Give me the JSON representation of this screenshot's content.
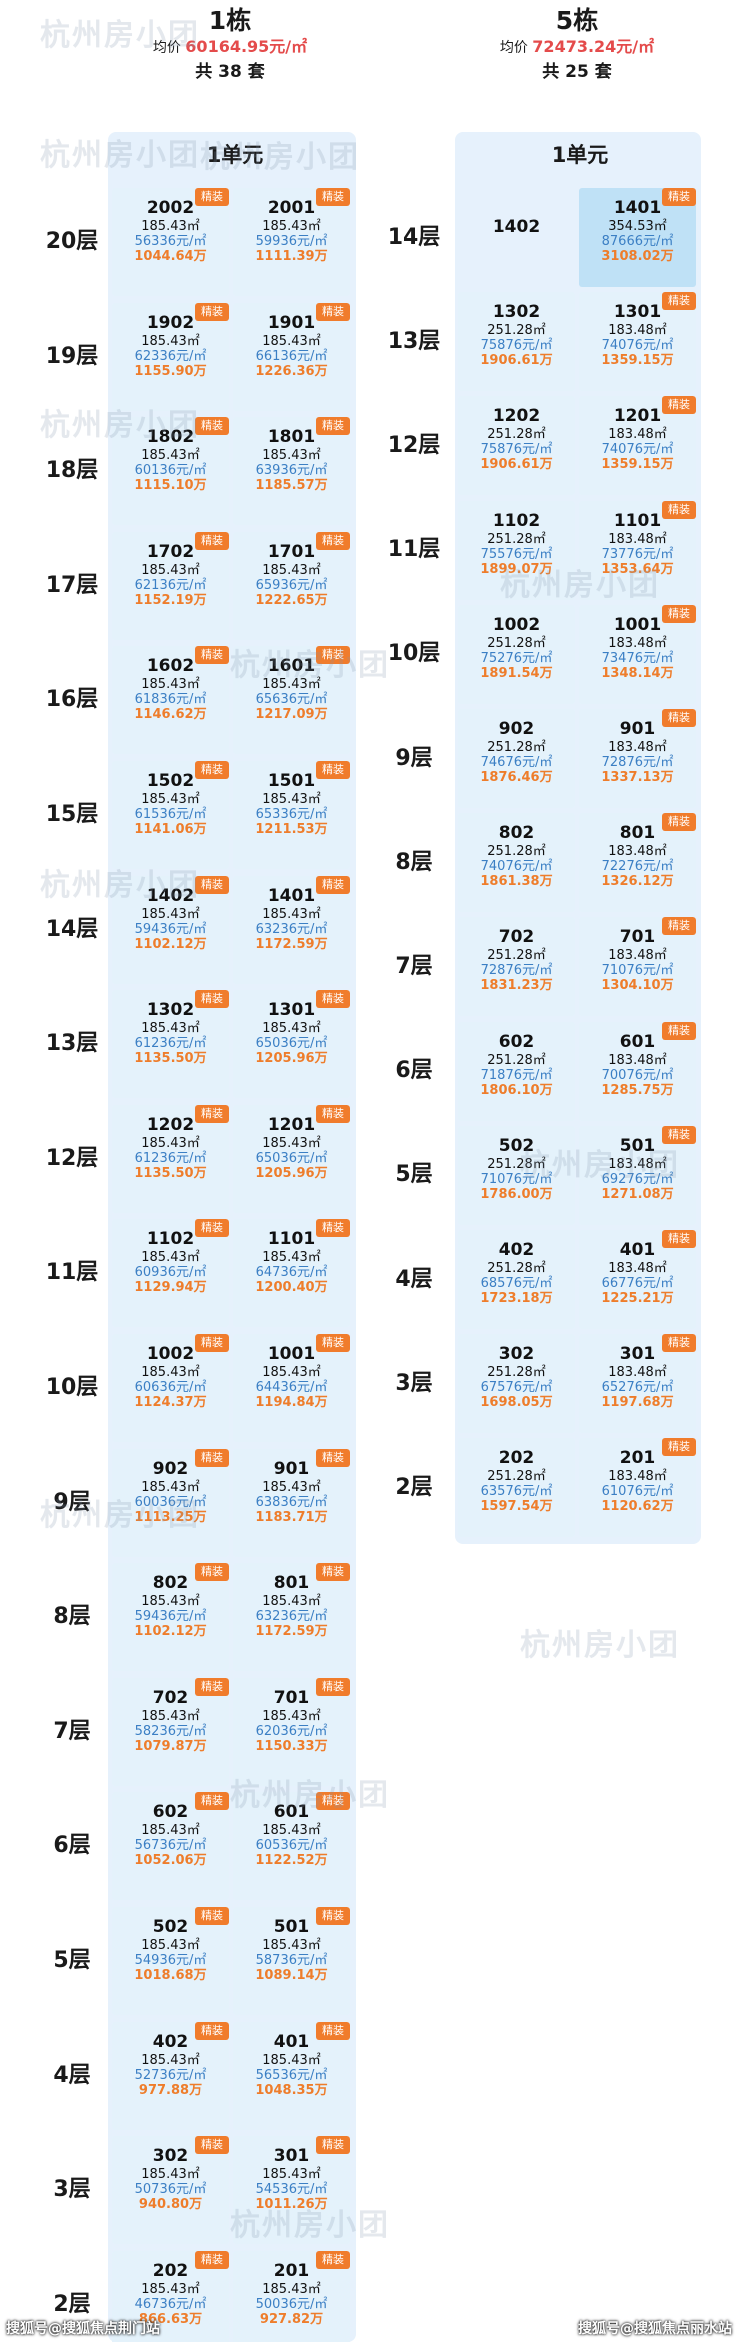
{
  "building1": {
    "name": "1栋",
    "price_label": "均价",
    "avg_price": "60164.95元/㎡",
    "total": "共 38 套",
    "unit_title": "1单元",
    "tag": "精装",
    "floors": [
      {
        "label": "20层",
        "units": [
          {
            "num": "2002",
            "area": "185.43㎡",
            "unit_price": "56336元/㎡",
            "total": "1044.64万",
            "tag": true
          },
          {
            "num": "2001",
            "area": "185.43㎡",
            "unit_price": "59936元/㎡",
            "total": "1111.39万",
            "tag": true
          }
        ]
      },
      {
        "label": "19层",
        "units": [
          {
            "num": "1902",
            "area": "185.43㎡",
            "unit_price": "62336元/㎡",
            "total": "1155.90万",
            "tag": true
          },
          {
            "num": "1901",
            "area": "185.43㎡",
            "unit_price": "66136元/㎡",
            "total": "1226.36万",
            "tag": true
          }
        ]
      },
      {
        "label": "18层",
        "units": [
          {
            "num": "1802",
            "area": "185.43㎡",
            "unit_price": "60136元/㎡",
            "total": "1115.10万",
            "tag": true
          },
          {
            "num": "1801",
            "area": "185.43㎡",
            "unit_price": "63936元/㎡",
            "total": "1185.57万",
            "tag": true
          }
        ]
      },
      {
        "label": "17层",
        "units": [
          {
            "num": "1702",
            "area": "185.43㎡",
            "unit_price": "62136元/㎡",
            "total": "1152.19万",
            "tag": true
          },
          {
            "num": "1701",
            "area": "185.43㎡",
            "unit_price": "65936元/㎡",
            "total": "1222.65万",
            "tag": true
          }
        ]
      },
      {
        "label": "16层",
        "units": [
          {
            "num": "1602",
            "area": "185.43㎡",
            "unit_price": "61836元/㎡",
            "total": "1146.62万",
            "tag": true
          },
          {
            "num": "1601",
            "area": "185.43㎡",
            "unit_price": "65636元/㎡",
            "total": "1217.09万",
            "tag": true
          }
        ]
      },
      {
        "label": "15层",
        "units": [
          {
            "num": "1502",
            "area": "185.43㎡",
            "unit_price": "61536元/㎡",
            "total": "1141.06万",
            "tag": true
          },
          {
            "num": "1501",
            "area": "185.43㎡",
            "unit_price": "65336元/㎡",
            "total": "1211.53万",
            "tag": true
          }
        ]
      },
      {
        "label": "14层",
        "units": [
          {
            "num": "1402",
            "area": "185.43㎡",
            "unit_price": "59436元/㎡",
            "total": "1102.12万",
            "tag": true
          },
          {
            "num": "1401",
            "area": "185.43㎡",
            "unit_price": "63236元/㎡",
            "total": "1172.59万",
            "tag": true
          }
        ]
      },
      {
        "label": "13层",
        "units": [
          {
            "num": "1302",
            "area": "185.43㎡",
            "unit_price": "61236元/㎡",
            "total": "1135.50万",
            "tag": true
          },
          {
            "num": "1301",
            "area": "185.43㎡",
            "unit_price": "65036元/㎡",
            "total": "1205.96万",
            "tag": true
          }
        ]
      },
      {
        "label": "12层",
        "units": [
          {
            "num": "1202",
            "area": "185.43㎡",
            "unit_price": "61236元/㎡",
            "total": "1135.50万",
            "tag": true
          },
          {
            "num": "1201",
            "area": "185.43㎡",
            "unit_price": "65036元/㎡",
            "total": "1205.96万",
            "tag": true
          }
        ]
      },
      {
        "label": "11层",
        "units": [
          {
            "num": "1102",
            "area": "185.43㎡",
            "unit_price": "60936元/㎡",
            "total": "1129.94万",
            "tag": true
          },
          {
            "num": "1101",
            "area": "185.43㎡",
            "unit_price": "64736元/㎡",
            "total": "1200.40万",
            "tag": true
          }
        ]
      },
      {
        "label": "10层",
        "units": [
          {
            "num": "1002",
            "area": "185.43㎡",
            "unit_price": "60636元/㎡",
            "total": "1124.37万",
            "tag": true
          },
          {
            "num": "1001",
            "area": "185.43㎡",
            "unit_price": "64436元/㎡",
            "total": "1194.84万",
            "tag": true
          }
        ]
      },
      {
        "label": "9层",
        "units": [
          {
            "num": "902",
            "area": "185.43㎡",
            "unit_price": "60036元/㎡",
            "total": "1113.25万",
            "tag": true
          },
          {
            "num": "901",
            "area": "185.43㎡",
            "unit_price": "63836元/㎡",
            "total": "1183.71万",
            "tag": true
          }
        ]
      },
      {
        "label": "8层",
        "units": [
          {
            "num": "802",
            "area": "185.43㎡",
            "unit_price": "59436元/㎡",
            "total": "1102.12万",
            "tag": true
          },
          {
            "num": "801",
            "area": "185.43㎡",
            "unit_price": "63236元/㎡",
            "total": "1172.59万",
            "tag": true
          }
        ]
      },
      {
        "label": "7层",
        "units": [
          {
            "num": "702",
            "area": "185.43㎡",
            "unit_price": "58236元/㎡",
            "total": "1079.87万",
            "tag": true
          },
          {
            "num": "701",
            "area": "185.43㎡",
            "unit_price": "62036元/㎡",
            "total": "1150.33万",
            "tag": true
          }
        ]
      },
      {
        "label": "6层",
        "units": [
          {
            "num": "602",
            "area": "185.43㎡",
            "unit_price": "56736元/㎡",
            "total": "1052.06万",
            "tag": true
          },
          {
            "num": "601",
            "area": "185.43㎡",
            "unit_price": "60536元/㎡",
            "total": "1122.52万",
            "tag": true
          }
        ]
      },
      {
        "label": "5层",
        "units": [
          {
            "num": "502",
            "area": "185.43㎡",
            "unit_price": "54936元/㎡",
            "total": "1018.68万",
            "tag": true
          },
          {
            "num": "501",
            "area": "185.43㎡",
            "unit_price": "58736元/㎡",
            "total": "1089.14万",
            "tag": true
          }
        ]
      },
      {
        "label": "4层",
        "units": [
          {
            "num": "402",
            "area": "185.43㎡",
            "unit_price": "52736元/㎡",
            "total": "977.88万",
            "tag": true
          },
          {
            "num": "401",
            "area": "185.43㎡",
            "unit_price": "56536元/㎡",
            "total": "1048.35万",
            "tag": true
          }
        ]
      },
      {
        "label": "3层",
        "units": [
          {
            "num": "302",
            "area": "185.43㎡",
            "unit_price": "50736元/㎡",
            "total": "940.80万",
            "tag": true
          },
          {
            "num": "301",
            "area": "185.43㎡",
            "unit_price": "54536元/㎡",
            "total": "1011.26万",
            "tag": true
          }
        ]
      },
      {
        "label": "2层",
        "units": [
          {
            "num": "202",
            "area": "185.43㎡",
            "unit_price": "46736元/㎡",
            "total": "866.63万",
            "tag": true
          },
          {
            "num": "201",
            "area": "185.43㎡",
            "unit_price": "50036元/㎡",
            "total": "927.82万",
            "tag": true
          }
        ]
      }
    ]
  },
  "building5": {
    "name": "5栋",
    "price_label": "均价",
    "avg_price": "72473.24元/㎡",
    "total": "共 25 套",
    "unit_title": "1单元",
    "tag": "精装",
    "floors": [
      {
        "label": "14层",
        "units": [
          {
            "num": "1402",
            "area": "",
            "unit_price": "",
            "total": "",
            "tag": false,
            "empty": true
          },
          {
            "num": "1401",
            "area": "354.53㎡",
            "unit_price": "87666元/㎡",
            "total": "3108.02万",
            "tag": true
          }
        ]
      },
      {
        "label": "13层",
        "units": [
          {
            "num": "1302",
            "area": "251.28㎡",
            "unit_price": "75876元/㎡",
            "total": "1906.61万",
            "tag": false
          },
          {
            "num": "1301",
            "area": "183.48㎡",
            "unit_price": "74076元/㎡",
            "total": "1359.15万",
            "tag": true
          }
        ]
      },
      {
        "label": "12层",
        "units": [
          {
            "num": "1202",
            "area": "251.28㎡",
            "unit_price": "75876元/㎡",
            "total": "1906.61万",
            "tag": false
          },
          {
            "num": "1201",
            "area": "183.48㎡",
            "unit_price": "74076元/㎡",
            "total": "1359.15万",
            "tag": true
          }
        ]
      },
      {
        "label": "11层",
        "units": [
          {
            "num": "1102",
            "area": "251.28㎡",
            "unit_price": "75576元/㎡",
            "total": "1899.07万",
            "tag": false
          },
          {
            "num": "1101",
            "area": "183.48㎡",
            "unit_price": "73776元/㎡",
            "total": "1353.64万",
            "tag": true
          }
        ]
      },
      {
        "label": "10层",
        "units": [
          {
            "num": "1002",
            "area": "251.28㎡",
            "unit_price": "75276元/㎡",
            "total": "1891.54万",
            "tag": false
          },
          {
            "num": "1001",
            "area": "183.48㎡",
            "unit_price": "73476元/㎡",
            "total": "1348.14万",
            "tag": true
          }
        ]
      },
      {
        "label": "9层",
        "units": [
          {
            "num": "902",
            "area": "251.28㎡",
            "unit_price": "74676元/㎡",
            "total": "1876.46万",
            "tag": false
          },
          {
            "num": "901",
            "area": "183.48㎡",
            "unit_price": "72876元/㎡",
            "total": "1337.13万",
            "tag": true
          }
        ]
      },
      {
        "label": "8层",
        "units": [
          {
            "num": "802",
            "area": "251.28㎡",
            "unit_price": "74076元/㎡",
            "total": "1861.38万",
            "tag": false
          },
          {
            "num": "801",
            "area": "183.48㎡",
            "unit_price": "72276元/㎡",
            "total": "1326.12万",
            "tag": true
          }
        ]
      },
      {
        "label": "7层",
        "units": [
          {
            "num": "702",
            "area": "251.28㎡",
            "unit_price": "72876元/㎡",
            "total": "1831.23万",
            "tag": false
          },
          {
            "num": "701",
            "area": "183.48㎡",
            "unit_price": "71076元/㎡",
            "total": "1304.10万",
            "tag": true
          }
        ]
      },
      {
        "label": "6层",
        "units": [
          {
            "num": "602",
            "area": "251.28㎡",
            "unit_price": "71876元/㎡",
            "total": "1806.10万",
            "tag": false
          },
          {
            "num": "601",
            "area": "183.48㎡",
            "unit_price": "70076元/㎡",
            "total": "1285.75万",
            "tag": true
          }
        ]
      },
      {
        "label": "5层",
        "units": [
          {
            "num": "502",
            "area": "251.28㎡",
            "unit_price": "71076元/㎡",
            "total": "1786.00万",
            "tag": false
          },
          {
            "num": "501",
            "area": "183.48㎡",
            "unit_price": "69276元/㎡",
            "total": "1271.08万",
            "tag": true
          }
        ]
      },
      {
        "label": "4层",
        "units": [
          {
            "num": "402",
            "area": "251.28㎡",
            "unit_price": "68576元/㎡",
            "total": "1723.18万",
            "tag": false
          },
          {
            "num": "401",
            "area": "183.48㎡",
            "unit_price": "66776元/㎡",
            "total": "1225.21万",
            "tag": true
          }
        ]
      },
      {
        "label": "3层",
        "units": [
          {
            "num": "302",
            "area": "251.28㎡",
            "unit_price": "67576元/㎡",
            "total": "1698.05万",
            "tag": false
          },
          {
            "num": "301",
            "area": "183.48㎡",
            "unit_price": "65276元/㎡",
            "total": "1197.68万",
            "tag": true
          }
        ]
      },
      {
        "label": "2层",
        "units": [
          {
            "num": "202",
            "area": "251.28㎡",
            "unit_price": "63576元/㎡",
            "total": "1597.54万",
            "tag": false
          },
          {
            "num": "201",
            "area": "183.48㎡",
            "unit_price": "61076元/㎡",
            "total": "1120.62万",
            "tag": true
          }
        ]
      }
    ]
  },
  "watermark": "杭州房小团",
  "footer": {
    "left": "搜狐号@搜狐焦点荆门站",
    "right": "搜狐号@搜狐焦点丽水站"
  },
  "colors": {
    "cell_light": "#e4f2fb",
    "cell_dark": "#bfe1f6",
    "accent_price": "#e44b4b",
    "tag_bg": "#f07c2c",
    "unit_price_blue": "#3b7fc4",
    "total_orange": "#ee7d2b"
  }
}
